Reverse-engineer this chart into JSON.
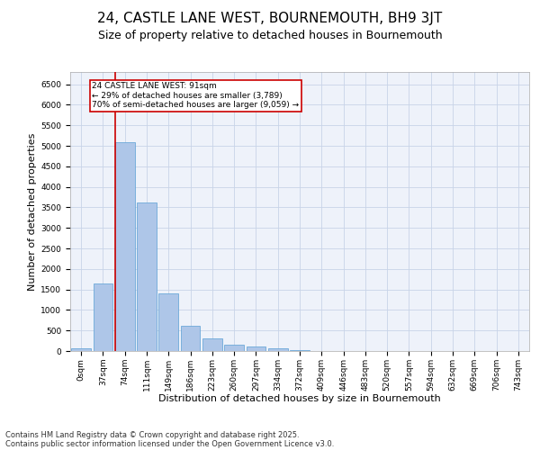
{
  "title1": "24, CASTLE LANE WEST, BOURNEMOUTH, BH9 3JT",
  "title2": "Size of property relative to detached houses in Bournemouth",
  "xlabel": "Distribution of detached houses by size in Bournemouth",
  "ylabel": "Number of detached properties",
  "categories": [
    "0sqm",
    "37sqm",
    "74sqm",
    "111sqm",
    "149sqm",
    "186sqm",
    "223sqm",
    "260sqm",
    "297sqm",
    "334sqm",
    "372sqm",
    "409sqm",
    "446sqm",
    "483sqm",
    "520sqm",
    "557sqm",
    "594sqm",
    "632sqm",
    "669sqm",
    "706sqm",
    "743sqm"
  ],
  "values": [
    55,
    1650,
    5100,
    3620,
    1400,
    610,
    310,
    150,
    110,
    75,
    30,
    0,
    0,
    0,
    0,
    0,
    0,
    0,
    0,
    0,
    0
  ],
  "bar_color": "#aec6e8",
  "bar_edge_color": "#5a9fd4",
  "property_line_color": "#cc0000",
  "annotation_text": "24 CASTLE LANE WEST: 91sqm\n← 29% of detached houses are smaller (3,789)\n70% of semi-detached houses are larger (9,059) →",
  "annotation_box_color": "#cc0000",
  "ylim": [
    0,
    6800
  ],
  "yticks": [
    0,
    500,
    1000,
    1500,
    2000,
    2500,
    3000,
    3500,
    4000,
    4500,
    5000,
    5500,
    6000,
    6500
  ],
  "background_color": "#eef2fa",
  "grid_color": "#c8d4e8",
  "footer1": "Contains HM Land Registry data © Crown copyright and database right 2025.",
  "footer2": "Contains public sector information licensed under the Open Government Licence v3.0.",
  "title1_fontsize": 11,
  "title2_fontsize": 9,
  "axis_fontsize": 8,
  "tick_fontsize": 6.5,
  "footer_fontsize": 6
}
